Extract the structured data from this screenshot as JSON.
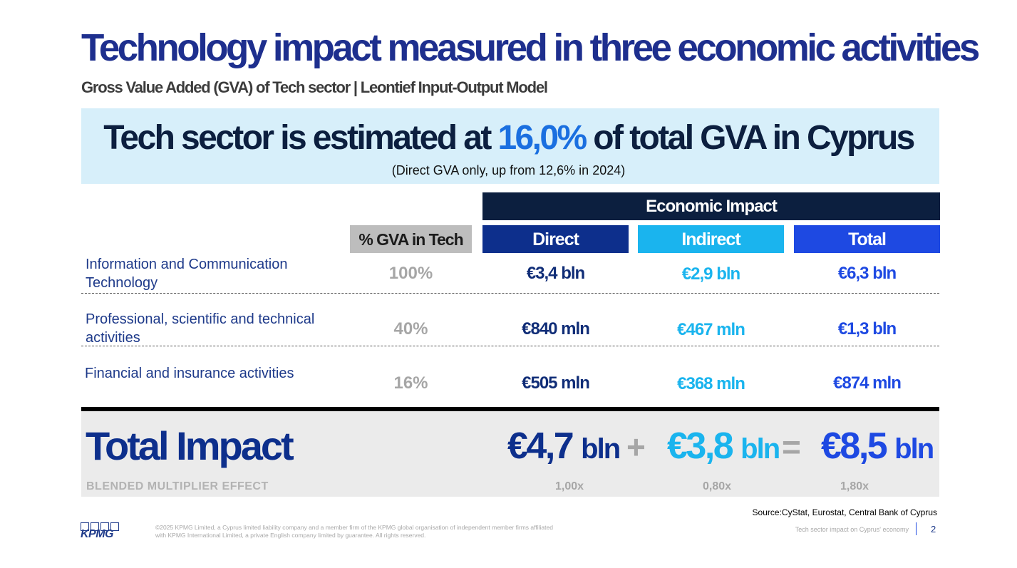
{
  "title": "Technology impact measured in three economic activities",
  "subtitle": "Gross Value Added (GVA) of Tech sector | Leontief Input-Output Model",
  "banner": {
    "headline_before": "Tech sector is estimated at ",
    "headline_highlight": "16,0%",
    "headline_after": " of total GVA in Cyprus",
    "note": "(Direct GVA only, up from 12,6% in 2024)"
  },
  "table": {
    "group_header": "Economic Impact",
    "columns": {
      "gva": "% GVA in Tech",
      "direct": "Direct",
      "indirect": "Indirect",
      "total": "Total"
    },
    "rows": [
      {
        "label": "Information and Communication Technology",
        "gva": "100%",
        "direct": "€3,4 bln",
        "indirect": "€2,9 bln",
        "total": "€6,3 bln"
      },
      {
        "label": "Professional, scientific and technical activities",
        "gva": "40%",
        "direct": "€840 mln",
        "indirect": "€467 mln",
        "total": "€1,3 bln"
      },
      {
        "label": "Financial and insurance activities",
        "gva": "16%",
        "direct": "€505 mln",
        "indirect": "€368 mln",
        "total": "€874 mln"
      }
    ]
  },
  "total_impact": {
    "label": "Total Impact",
    "direct": {
      "value": "€4,7",
      "unit": "bln"
    },
    "plus": "+",
    "indirect": {
      "value": "€3,8",
      "unit": "bln"
    },
    "equals": "=",
    "total": {
      "value": "€8,5",
      "unit": "bln"
    },
    "multiplier_label": "BLENDED MULTIPLIER EFFECT",
    "multipliers": {
      "direct": "1,00x",
      "indirect": "0,80x",
      "total": "1,80x"
    }
  },
  "source": "Source:CyStat, Eurostat, Central Bank of Cyprus",
  "footer": {
    "logo_text": "KPMG",
    "copyright": "©2025 KPMG Limited, a Cyprus limited liability company and a member firm of the KPMG global organisation of independent member firms affiliated with KPMG International Limited, a private English company limited by guarantee. All rights reserved.",
    "doc_title": "Tech sector impact on Cyprus' economy",
    "page_number": "2"
  },
  "colors": {
    "title_blue": "#1E2F8E",
    "banner_bg": "#D7EFFA",
    "highlight_blue": "#1A6FE0",
    "navy": "#0C1F3F",
    "direct": "#0D2F8C",
    "indirect": "#1AB4EE",
    "total": "#1E49E2"
  }
}
